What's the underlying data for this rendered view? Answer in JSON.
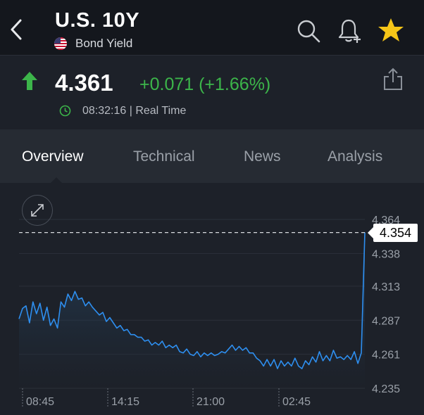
{
  "header": {
    "title": "U.S. 10Y",
    "subtitle": "Bond Yield",
    "icons": {
      "back": "back-chevron-icon",
      "flag": "us-flag-icon",
      "search": "search-icon",
      "alert": "add-alert-bell-icon",
      "watchlist": "star-icon"
    },
    "star_color": "#f5c518"
  },
  "quote": {
    "price": "4.361",
    "change": "+0.071 (+1.66%)",
    "time": "08:32:16 | Real Time",
    "direction": "up",
    "change_color": "#3cb54a"
  },
  "tabs": [
    {
      "label": "Overview",
      "active": true
    },
    {
      "label": "Technical",
      "active": false
    },
    {
      "label": "News",
      "active": false
    },
    {
      "label": "Analysis",
      "active": false
    }
  ],
  "chart_data": {
    "type": "area",
    "last_value": "4.354",
    "y_ticks": [
      "4.364",
      "4.338",
      "4.313",
      "4.287",
      "4.261",
      "4.235"
    ],
    "ylim": [
      4.235,
      4.364
    ],
    "x_ticks": [
      "08:45",
      "14:15",
      "21:00",
      "02:45"
    ],
    "line_color": "#2e8ff0",
    "series": [
      {
        "values": [
          4.288,
          4.296,
          4.298,
          4.285,
          4.301,
          4.292,
          4.3,
          4.287,
          4.297,
          4.283,
          4.288,
          4.281,
          4.301,
          4.297,
          4.307,
          4.302,
          4.309,
          4.303,
          4.304,
          4.298,
          4.301,
          4.297,
          4.294,
          4.291,
          4.293,
          4.286,
          4.289,
          4.285,
          4.281,
          4.283,
          4.279,
          4.28,
          4.276,
          4.276,
          4.274,
          4.274,
          4.271,
          4.272,
          4.268,
          4.27,
          4.268,
          4.271,
          4.266,
          4.268,
          4.266,
          4.268,
          4.263,
          4.262,
          4.265,
          4.261,
          4.26,
          4.263,
          4.259,
          4.262,
          4.26,
          4.262,
          4.26,
          4.261,
          4.263,
          4.262,
          4.265,
          4.268,
          4.264,
          4.267,
          4.264,
          4.266,
          4.262,
          4.262,
          4.258,
          4.256,
          4.252,
          4.257,
          4.252,
          4.257,
          4.25,
          4.256,
          4.252,
          4.255,
          4.252,
          4.258,
          4.252,
          4.25,
          4.256,
          4.253,
          4.259,
          4.255,
          4.263,
          4.256,
          4.26,
          4.256,
          4.264,
          4.258,
          4.259,
          4.257,
          4.26,
          4.257,
          4.263,
          4.254,
          4.262,
          4.354
        ]
      }
    ]
  }
}
